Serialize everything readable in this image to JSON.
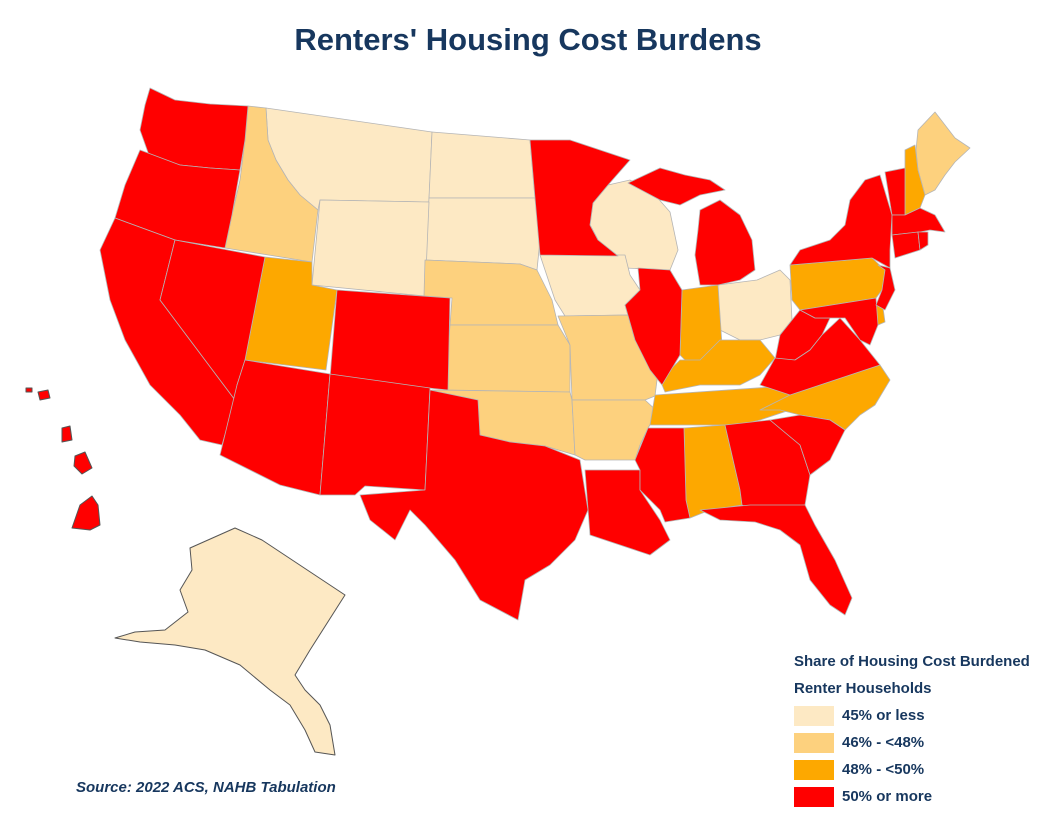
{
  "title": "Renters' Housing Cost Burdens",
  "colors": {
    "c1": "#fde9c4",
    "c2": "#fdd17e",
    "c3": "#fda800",
    "c4": "#ff0000"
  },
  "legend": {
    "title_line1": "Share of Housing Cost Burdened",
    "title_line2": "Renter Households",
    "items": [
      {
        "label": "45% or less",
        "color": "#fde9c4"
      },
      {
        "label": "46% - <48%",
        "color": "#fdd17e"
      },
      {
        "label": "48% - <50%",
        "color": "#fda800"
      },
      {
        "label": "50% or more",
        "color": "#ff0000"
      }
    ]
  },
  "source": "Source: 2022 ACS, NAHB Tabulation",
  "state_categories": {
    "45% or less": [
      "MT",
      "ND",
      "SD",
      "WY",
      "WI",
      "IA",
      "OH",
      "AK"
    ],
    "46% - <48%": [
      "ID",
      "NE",
      "KS",
      "MO",
      "OK",
      "AR",
      "ME"
    ],
    "48% - <50%": [
      "UT",
      "IN",
      "KY",
      "TN",
      "NC",
      "AL",
      "PA",
      "NH",
      "DE"
    ],
    "50% or more": [
      "WA",
      "OR",
      "CA",
      "NV",
      "AZ",
      "CO",
      "NM",
      "TX",
      "MN",
      "IL",
      "MI",
      "LA",
      "MS",
      "GA",
      "SC",
      "FL",
      "WV",
      "VA",
      "MD",
      "NJ",
      "NY",
      "VT",
      "MA",
      "CT",
      "RI",
      "HI"
    ]
  }
}
